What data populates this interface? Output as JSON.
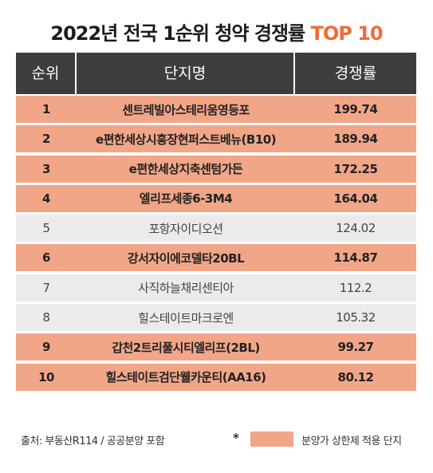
{
  "title": {
    "main": "2022년 전국 1순위 청약 경쟁률 ",
    "accent": "TOP 10"
  },
  "colors": {
    "accent": "#f06b38",
    "highlight_row": "#f1a688",
    "normal_row": "#ebebeb",
    "header_bg": "#3d3d3d"
  },
  "table": {
    "headers": [
      "순위",
      "단지명",
      "경쟁률"
    ],
    "rows": [
      {
        "rank": "1",
        "name": "센트레빌아스테리움영등포",
        "ratio": "199.74",
        "price_cap": true
      },
      {
        "rank": "2",
        "name": "e편한세상시흥장현퍼스트베뉴(B10)",
        "ratio": "189.94",
        "price_cap": true
      },
      {
        "rank": "3",
        "name": "e편한세상지축센텀가든",
        "ratio": "172.25",
        "price_cap": true
      },
      {
        "rank": "4",
        "name": "엘리프세종6-3M4",
        "ratio": "164.04",
        "price_cap": true
      },
      {
        "rank": "5",
        "name": "포항자이디오션",
        "ratio": "124.02",
        "price_cap": false
      },
      {
        "rank": "6",
        "name": "강서자이에코델타20BL",
        "ratio": "114.87",
        "price_cap": true
      },
      {
        "rank": "7",
        "name": "사직하늘채리센티아",
        "ratio": "112.2",
        "price_cap": false
      },
      {
        "rank": "8",
        "name": "힐스테이트마크로엔",
        "ratio": "105.32",
        "price_cap": false
      },
      {
        "rank": "9",
        "name": "갑천2트리풀시티엘리프(2BL)",
        "ratio": "99.27",
        "price_cap": true
      },
      {
        "rank": "10",
        "name": "힐스테이트검단웰카운티(AA16)",
        "ratio": "80.12",
        "price_cap": true
      }
    ]
  },
  "footer": {
    "source": "출처: 부동산R114 / 공공분양 포함",
    "legend_marker": "*",
    "legend_text": "분양가 상한제 적용 단지"
  }
}
